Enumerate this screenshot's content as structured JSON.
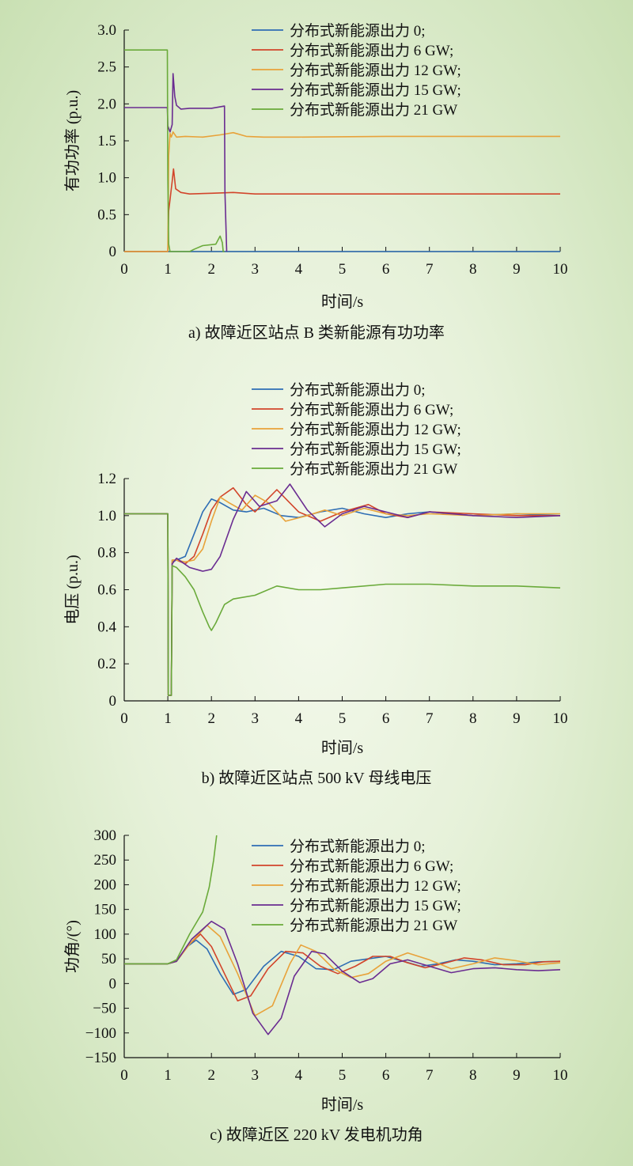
{
  "charts": [
    {
      "type": "line",
      "caption": "a) 故障近区站点 B 类新能源有功功率",
      "xlabel": "时间/s",
      "ylabel": "有功功率 (p.u.)",
      "xlim": [
        0,
        10
      ],
      "ylim": [
        0,
        3.0
      ],
      "xticks": [
        "0",
        "1",
        "2",
        "3",
        "4",
        "5",
        "6",
        "7",
        "8",
        "9",
        "10"
      ],
      "yticks": [
        "0",
        "0.5",
        "1.0",
        "1.5",
        "2.0",
        "2.5",
        "3.0"
      ],
      "legend": [
        "分布式新能源出力 0;",
        "分布式新能源出力 6 GW;",
        "分布式新能源出力 12 GW;",
        "分布式新能源出力 15 GW;",
        "分布式新能源出力 21 GW"
      ]
    },
    {
      "type": "line",
      "caption": "b) 故障近区站点 500 kV 母线电压",
      "xlabel": "时间/s",
      "ylabel": "电压 (p.u.)",
      "xlim": [
        0,
        10
      ],
      "ylim": [
        0,
        1.2
      ],
      "xticks": [
        "0",
        "1",
        "2",
        "3",
        "4",
        "5",
        "6",
        "7",
        "8",
        "9",
        "10"
      ],
      "yticks": [
        "0",
        "0.2",
        "0.4",
        "0.6",
        "0.8",
        "1.0",
        "1.2"
      ],
      "legend": [
        "分布式新能源出力 0;",
        "分布式新能源出力 6 GW;",
        "分布式新能源出力 12 GW;",
        "分布式新能源出力 15 GW;",
        "分布式新能源出力 21 GW"
      ]
    },
    {
      "type": "line",
      "caption": "c) 故障近区 220 kV 发电机功角",
      "xlabel": "时间/s",
      "ylabel": "功角/(°)",
      "xlim": [
        0,
        10
      ],
      "ylim": [
        -150,
        300
      ],
      "xticks": [
        "0",
        "1",
        "2",
        "3",
        "4",
        "5",
        "6",
        "7",
        "8",
        "9",
        "10"
      ],
      "yticks": [
        "−150",
        "−100",
        "−50",
        "0",
        "50",
        "100",
        "150",
        "200",
        "250",
        "300"
      ],
      "legend": [
        "分布式新能源出力 0;",
        "分布式新能源出力 6 GW;",
        "分布式新能源出力 12 GW;",
        "分布式新能源出力 15 GW;",
        "分布式新能源出力 21 GW"
      ]
    }
  ],
  "colors": {
    "series": [
      "#2e6db4",
      "#d2452b",
      "#e8a23a",
      "#6a2c91",
      "#6aaa3a"
    ],
    "axis": "#111111"
  },
  "chart_data": [
    {
      "type": "line",
      "title": "a) 故障近区站点 B 类新能源有功功率",
      "xlabel": "时间/s",
      "ylabel": "有功功率 (p.u.)",
      "xlim": [
        0,
        10
      ],
      "ylim": [
        0,
        3.0
      ],
      "grid": false,
      "legend_position": "top-right",
      "series": [
        {
          "name": "分布式新能源出力 0;",
          "x": [
            0,
            10
          ],
          "y": [
            0,
            0
          ]
        },
        {
          "name": "分布式新能源出力 6 GW;",
          "x": [
            0,
            1.0,
            1.02,
            1.06,
            1.1,
            1.13,
            1.18,
            1.3,
            1.5,
            2.0,
            2.5,
            3.0,
            4.0,
            10.0
          ],
          "y": [
            0,
            0,
            0.55,
            0.75,
            0.95,
            1.12,
            0.85,
            0.8,
            0.78,
            0.79,
            0.8,
            0.78,
            0.78,
            0.78
          ]
        },
        {
          "name": "分布式新能源出力 12 GW;",
          "x": [
            0,
            1.0,
            1.02,
            1.05,
            1.08,
            1.12,
            1.2,
            1.4,
            1.8,
            2.2,
            2.5,
            2.8,
            3.2,
            4.0,
            6.0,
            10.0
          ],
          "y": [
            0,
            0,
            1.3,
            1.6,
            1.55,
            1.62,
            1.55,
            1.56,
            1.55,
            1.58,
            1.61,
            1.56,
            1.55,
            1.55,
            1.56,
            1.56
          ]
        },
        {
          "name": "分布式新能源出力 15 GW;",
          "x": [
            0,
            0.99,
            1.0,
            1.05,
            1.1,
            1.12,
            1.16,
            1.2,
            1.3,
            1.5,
            2.0,
            2.3,
            2.31,
            2.35
          ],
          "y": [
            1.95,
            1.95,
            1.7,
            1.62,
            1.72,
            2.41,
            2.1,
            1.98,
            1.93,
            1.94,
            1.94,
            1.97,
            0.8,
            0
          ]
        },
        {
          "name": "分布式新能源出力 21 GW",
          "x": [
            0,
            0.99,
            1.0,
            1.02,
            1.05,
            1.1,
            1.5,
            1.6,
            1.8,
            2.1,
            2.2,
            2.25,
            2.27,
            2.3
          ],
          "y": [
            2.73,
            2.73,
            1.0,
            0.1,
            0,
            0,
            0,
            0.03,
            0.08,
            0.1,
            0.21,
            0.12,
            0,
            0
          ]
        }
      ]
    },
    {
      "type": "line",
      "title": "b) 故障近区站点 500 kV 母线电压",
      "xlabel": "时间/s",
      "ylabel": "电压 (p.u.)",
      "xlim": [
        0,
        10
      ],
      "ylim": [
        0,
        1.2
      ],
      "grid": false,
      "legend_position": "top-right",
      "series": [
        {
          "name": "分布式新能源出力 0;",
          "x": [
            0,
            1.0,
            1.01,
            1.08,
            1.1,
            1.2,
            1.4,
            1.6,
            1.8,
            2.0,
            2.2,
            2.5,
            2.8,
            3.2,
            3.6,
            4.0,
            4.5,
            5.0,
            5.5,
            6.0,
            6.5,
            7.0,
            8.0,
            9.0,
            10.0
          ],
          "y": [
            1.01,
            1.01,
            0.03,
            0.03,
            0.75,
            0.76,
            0.78,
            0.9,
            1.02,
            1.09,
            1.07,
            1.03,
            1.02,
            1.04,
            1.0,
            0.99,
            1.02,
            1.04,
            1.01,
            0.99,
            1.01,
            1.02,
            1.0,
            1.01,
            1.0
          ]
        },
        {
          "name": "分布式新能源出力 6 GW;",
          "x": [
            0,
            1.0,
            1.01,
            1.08,
            1.1,
            1.2,
            1.4,
            1.6,
            1.8,
            2.0,
            2.2,
            2.5,
            2.8,
            3.0,
            3.5,
            4.0,
            4.5,
            5.0,
            5.6,
            6.0,
            6.5,
            7.0,
            8.0,
            9.0,
            10.0
          ],
          "y": [
            1.01,
            1.01,
            0.03,
            0.03,
            0.76,
            0.76,
            0.74,
            0.78,
            0.9,
            1.03,
            1.1,
            1.15,
            1.06,
            1.02,
            1.14,
            1.02,
            0.97,
            1.02,
            1.06,
            1.01,
            0.99,
            1.02,
            1.01,
            1.0,
            1.0
          ]
        },
        {
          "name": "分布式新能源出力 12 GW;",
          "x": [
            0,
            1.0,
            1.01,
            1.08,
            1.1,
            1.2,
            1.4,
            1.6,
            1.8,
            2.0,
            2.2,
            2.4,
            2.7,
            3.0,
            3.3,
            3.7,
            4.2,
            4.6,
            5.0,
            5.5,
            6.0,
            6.5,
            7.0,
            8.0,
            9.0,
            10.0
          ],
          "y": [
            1.01,
            1.01,
            0.03,
            0.03,
            0.76,
            0.76,
            0.75,
            0.76,
            0.82,
            0.97,
            1.1,
            1.07,
            1.03,
            1.11,
            1.07,
            0.97,
            1.0,
            1.03,
            1.0,
            1.04,
            1.01,
            1.0,
            1.01,
            1.0,
            1.01,
            1.01
          ]
        },
        {
          "name": "分布式新能源出力 15 GW;",
          "x": [
            0,
            1.0,
            1.01,
            1.08,
            1.1,
            1.2,
            1.5,
            1.8,
            2.0,
            2.2,
            2.5,
            2.8,
            3.1,
            3.5,
            3.8,
            4.2,
            4.6,
            5.0,
            5.5,
            6.0,
            6.5,
            7.0,
            8.0,
            9.0,
            10.0
          ],
          "y": [
            1.01,
            1.01,
            0.03,
            0.03,
            0.74,
            0.77,
            0.72,
            0.7,
            0.71,
            0.78,
            0.98,
            1.13,
            1.05,
            1.08,
            1.17,
            1.03,
            0.94,
            1.01,
            1.05,
            1.02,
            0.99,
            1.02,
            1.0,
            0.99,
            1.0
          ]
        },
        {
          "name": "分布式新能源出力 21 GW",
          "x": [
            0,
            1.0,
            1.01,
            1.08,
            1.1,
            1.2,
            1.4,
            1.6,
            1.8,
            1.95,
            2.0,
            2.1,
            2.3,
            2.5,
            3.0,
            3.5,
            4.0,
            4.5,
            5.0,
            6.0,
            7.0,
            8.0,
            9.0,
            10.0
          ],
          "y": [
            1.01,
            1.01,
            0.03,
            0.03,
            0.73,
            0.72,
            0.67,
            0.6,
            0.48,
            0.4,
            0.38,
            0.42,
            0.52,
            0.55,
            0.57,
            0.62,
            0.6,
            0.6,
            0.61,
            0.63,
            0.63,
            0.62,
            0.62,
            0.61
          ]
        }
      ]
    },
    {
      "type": "line",
      "title": "c) 故障近区 220 kV 发电机功角",
      "xlabel": "时间/s",
      "ylabel": "功角/(°)",
      "xlim": [
        0,
        10
      ],
      "ylim": [
        -150,
        300
      ],
      "grid": false,
      "legend_position": "top-right",
      "series": [
        {
          "name": "分布式新能源出力 0;",
          "x": [
            0,
            1.0,
            1.2,
            1.45,
            1.65,
            1.9,
            2.2,
            2.5,
            2.8,
            3.2,
            3.6,
            4.0,
            4.4,
            4.8,
            5.2,
            5.6,
            6.0,
            6.4,
            6.8,
            7.2,
            7.6,
            8.0,
            8.5,
            9.0,
            9.5,
            10.0
          ],
          "y": [
            40,
            40,
            45,
            75,
            88,
            70,
            20,
            -22,
            -12,
            35,
            65,
            55,
            30,
            28,
            45,
            50,
            55,
            45,
            35,
            40,
            48,
            45,
            38,
            40,
            44,
            45
          ]
        },
        {
          "name": "分布式新能源出力 6 GW;",
          "x": [
            0,
            1.0,
            1.2,
            1.5,
            1.75,
            2.0,
            2.3,
            2.6,
            2.9,
            3.3,
            3.7,
            4.1,
            4.5,
            4.9,
            5.3,
            5.7,
            6.1,
            6.5,
            6.9,
            7.3,
            7.8,
            8.2,
            8.7,
            9.2,
            9.6,
            10.0
          ],
          "y": [
            40,
            40,
            45,
            80,
            100,
            75,
            20,
            -35,
            -25,
            30,
            65,
            62,
            35,
            20,
            35,
            55,
            55,
            42,
            32,
            40,
            52,
            48,
            38,
            38,
            44,
            45
          ]
        },
        {
          "name": "分布式新能源出力 12 GW;",
          "x": [
            0,
            1.0,
            1.2,
            1.5,
            1.9,
            2.2,
            2.6,
            3.0,
            3.4,
            3.8,
            4.05,
            4.4,
            4.8,
            5.2,
            5.6,
            6.0,
            6.5,
            7.0,
            7.5,
            8.0,
            8.5,
            9.0,
            9.5,
            10.0
          ],
          "y": [
            40,
            40,
            45,
            80,
            118,
            95,
            20,
            -65,
            -45,
            40,
            78,
            65,
            30,
            12,
            20,
            45,
            62,
            48,
            30,
            40,
            52,
            46,
            38,
            42
          ]
        },
        {
          "name": "分布式新能源出力 15 GW;",
          "x": [
            0,
            1.0,
            1.2,
            1.55,
            2.0,
            2.3,
            2.6,
            2.95,
            3.3,
            3.6,
            3.9,
            4.3,
            4.6,
            5.0,
            5.4,
            5.7,
            6.1,
            6.5,
            7.0,
            7.5,
            8.0,
            8.5,
            9.0,
            9.5,
            10.0
          ],
          "y": [
            40,
            40,
            45,
            90,
            126,
            110,
            40,
            -60,
            -103,
            -70,
            15,
            65,
            60,
            25,
            2,
            10,
            40,
            48,
            35,
            22,
            30,
            32,
            28,
            26,
            28
          ]
        },
        {
          "name": "分布式新能源出力 21 GW",
          "x": [
            0,
            1.0,
            1.2,
            1.5,
            1.8,
            1.95,
            2.05,
            2.12
          ],
          "y": [
            40,
            40,
            48,
            100,
            145,
            195,
            250,
            300
          ]
        }
      ]
    }
  ]
}
